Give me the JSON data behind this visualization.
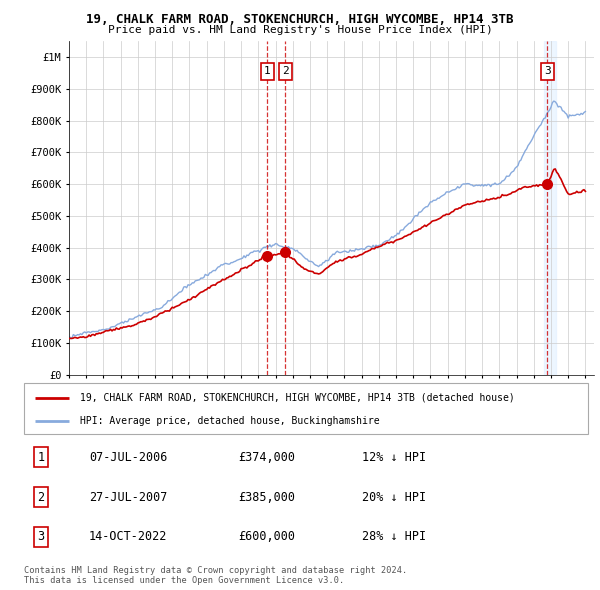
{
  "title": "19, CHALK FARM ROAD, STOKENCHURCH, HIGH WYCOMBE, HP14 3TB",
  "subtitle": "Price paid vs. HM Land Registry's House Price Index (HPI)",
  "ylabel_ticks": [
    "£0",
    "£100K",
    "£200K",
    "£300K",
    "£400K",
    "£500K",
    "£600K",
    "£700K",
    "£800K",
    "£900K",
    "£1M"
  ],
  "ytick_values": [
    0,
    100000,
    200000,
    300000,
    400000,
    500000,
    600000,
    700000,
    800000,
    900000,
    1000000
  ],
  "xmin": 1995.0,
  "xmax": 2025.5,
  "ymin": 0,
  "ymax": 1050000,
  "red_line_color": "#cc0000",
  "blue_line_color": "#88aadd",
  "vline_color": "#cc0000",
  "grid_color": "#cccccc",
  "bg_color": "#ffffff",
  "sale_points": [
    {
      "year": 2006.52,
      "price": 374000,
      "label": "1"
    },
    {
      "year": 2007.57,
      "price": 385000,
      "label": "2"
    },
    {
      "year": 2022.79,
      "price": 600000,
      "label": "3"
    }
  ],
  "legend_entries": [
    "19, CHALK FARM ROAD, STOKENCHURCH, HIGH WYCOMBE, HP14 3TB (detached house)",
    "HPI: Average price, detached house, Buckinghamshire"
  ],
  "table_rows": [
    {
      "num": "1",
      "date": "07-JUL-2006",
      "price": "£374,000",
      "hpi": "12% ↓ HPI"
    },
    {
      "num": "2",
      "date": "27-JUL-2007",
      "price": "£385,000",
      "hpi": "20% ↓ HPI"
    },
    {
      "num": "3",
      "date": "14-OCT-2022",
      "price": "£600,000",
      "hpi": "28% ↓ HPI"
    }
  ],
  "footnote": "Contains HM Land Registry data © Crown copyright and database right 2024.\nThis data is licensed under the Open Government Licence v3.0.",
  "xtick_years": [
    1995,
    1996,
    1997,
    1998,
    1999,
    2000,
    2001,
    2002,
    2003,
    2004,
    2005,
    2006,
    2007,
    2008,
    2009,
    2010,
    2011,
    2012,
    2013,
    2014,
    2015,
    2016,
    2017,
    2018,
    2019,
    2020,
    2021,
    2022,
    2023,
    2024,
    2025
  ]
}
